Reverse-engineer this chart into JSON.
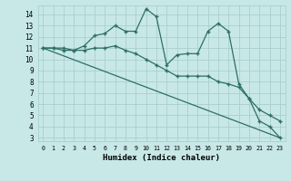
{
  "line1": {
    "x": [
      0,
      1,
      2,
      3,
      4,
      5,
      6,
      7,
      8,
      9,
      10,
      11,
      12,
      13,
      14,
      15,
      16,
      17,
      18,
      19,
      20,
      21,
      22,
      23
    ],
    "y": [
      11,
      11,
      11,
      10.8,
      11.2,
      12.1,
      12.3,
      13.0,
      12.5,
      12.5,
      14.5,
      13.8,
      9.5,
      10.4,
      10.5,
      10.5,
      12.5,
      13.2,
      12.5,
      7.8,
      6.5,
      4.5,
      4.0,
      3.0
    ]
  },
  "line2": {
    "x": [
      0,
      1,
      2,
      3,
      4,
      5,
      6,
      7,
      8,
      9,
      10,
      11,
      12,
      13,
      14,
      15,
      16,
      17,
      18,
      19,
      20,
      21,
      22,
      23
    ],
    "y": [
      11,
      11,
      10.8,
      10.8,
      10.8,
      11.0,
      11.0,
      11.2,
      10.8,
      10.5,
      10.0,
      9.5,
      9.0,
      8.5,
      8.5,
      8.5,
      8.5,
      8.0,
      7.8,
      7.5,
      6.5,
      5.5,
      5.0,
      4.5
    ]
  },
  "line3": {
    "x": [
      0,
      23
    ],
    "y": [
      11,
      3
    ]
  },
  "color": "#2d6e65",
  "bg_color": "#c8e8e8",
  "grid_color": "#aacece",
  "xlabel": "Humidex (Indice chaleur)",
  "xlim": [
    -0.5,
    23.5
  ],
  "ylim": [
    2.7,
    14.8
  ],
  "xticks": [
    0,
    1,
    2,
    3,
    4,
    5,
    6,
    7,
    8,
    9,
    10,
    11,
    12,
    13,
    14,
    15,
    16,
    17,
    18,
    19,
    20,
    21,
    22,
    23
  ],
  "yticks": [
    3,
    4,
    5,
    6,
    7,
    8,
    9,
    10,
    11,
    12,
    13,
    14
  ],
  "marker": "+"
}
